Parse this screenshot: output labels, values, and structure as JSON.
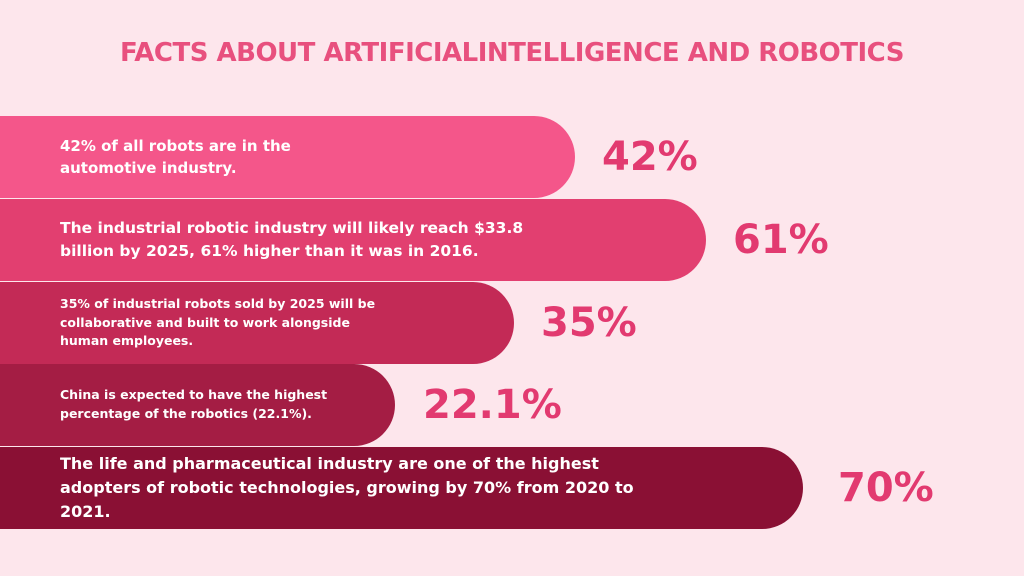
{
  "chart_data": {
    "type": "bar",
    "title": "FACTS ABOUT ARTIFICIALINTELLIGENCE AND ROBOTICS",
    "categories": [
      "42% of all robots are in the automotive industry.",
      "The industrial robotic industry will likely reach $33.8 billion by 2025, 61% higher than it was in 2016.",
      "35% of industrial robots sold by 2025 will be collaborative and built to work alongside human employees.",
      "China is expected to have the highest percentage of the robotics (22.1%).",
      "The life and pharmaceutical industry are one of the highest adopters of robotic technologies, growing by 70% from 2020 to 2021."
    ],
    "values": [
      42,
      61,
      35,
      22.1,
      70
    ],
    "value_labels": [
      "42%",
      "61%",
      "35%",
      "22.1%",
      "70%"
    ],
    "colors": [
      "#f4568a",
      "#e23f70",
      "#c32a56",
      "#a41d44",
      "#8a1034"
    ],
    "label_color": "#e23a70",
    "title_color": "#e8507e",
    "background": "#fde6ec"
  }
}
